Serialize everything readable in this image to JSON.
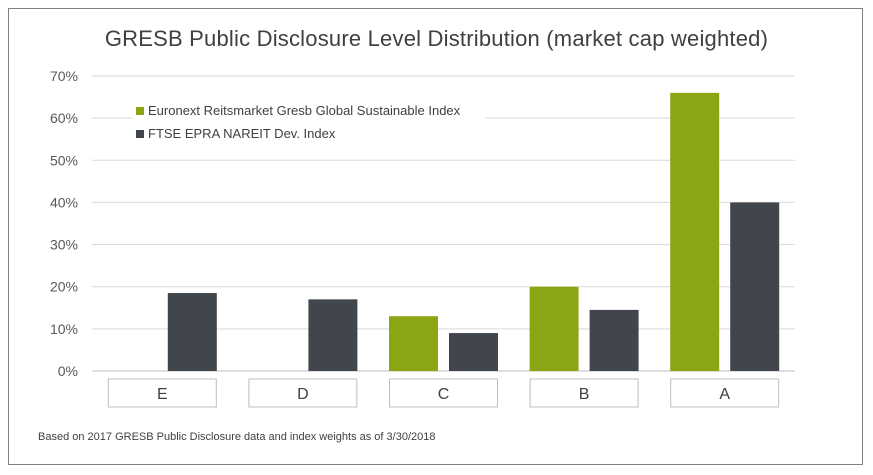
{
  "chart_data": {
    "type": "bar",
    "title": "GRESB Public Disclosure Level Distribution (market cap weighted)",
    "categories": [
      "E",
      "D",
      "C",
      "B",
      "A"
    ],
    "series": [
      {
        "name": "Euronext Reitsmarket Gresb Global Sustainable Index",
        "color": "#8aa614",
        "values": [
          0,
          0,
          13,
          20,
          66
        ]
      },
      {
        "name": "FTSE EPRA NAREIT Dev. Index",
        "color": "#41464d",
        "values": [
          18.5,
          17,
          9,
          14.5,
          40
        ]
      }
    ],
    "yticks": [
      "0%",
      "10%",
      "20%",
      "30%",
      "40%",
      "50%",
      "60%",
      "70%"
    ],
    "ylim": [
      0,
      70
    ],
    "xlabel": "",
    "ylabel": "",
    "grid": true,
    "legend_position": "top-left"
  },
  "footnote": "Based on 2017 GRESB Public Disclosure data and index weights as of 3/30/2018"
}
